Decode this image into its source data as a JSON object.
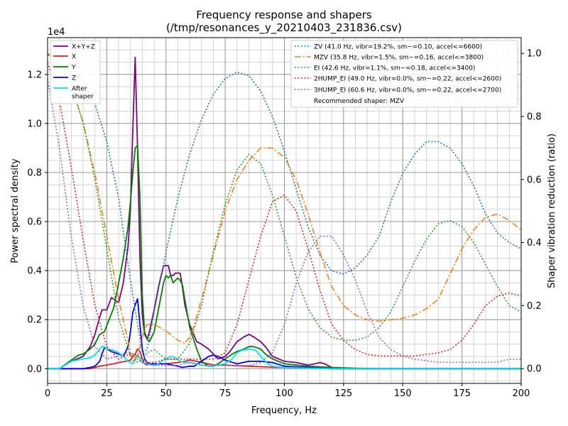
{
  "chart_data": {
    "type": "line",
    "title_line1": "Frequency response and shapers",
    "title_line2": "(/tmp/resonances_y_20210403_231836.csv)",
    "xlabel": "Frequency, Hz",
    "ylabel_left": "Power spectral density",
    "ylabel_right": "Shaper vibration reduction (ratio)",
    "y_offset_label": "1e4",
    "xlim": [
      0,
      200
    ],
    "ylim_left": [
      -600,
      13500
    ],
    "ylim_right": [
      -0.047,
      1.05
    ],
    "x_ticks": [
      0,
      25,
      50,
      75,
      100,
      125,
      150,
      175,
      200
    ],
    "x_tick_labels": [
      "0",
      "25",
      "50",
      "75",
      "100",
      "125",
      "150",
      "175",
      "200"
    ],
    "y_left_ticks": [
      0,
      2000,
      4000,
      6000,
      8000,
      10000,
      12000
    ],
    "y_left_tick_labels": [
      "0.0",
      "0.2",
      "0.4",
      "0.6",
      "0.8",
      "1.0",
      "1.2"
    ],
    "y_right_ticks": [
      0,
      0.2,
      0.4,
      0.6,
      0.8,
      1.0
    ],
    "y_right_tick_labels": [
      "0.0",
      "0.2",
      "0.4",
      "0.6",
      "0.8",
      "1.0"
    ],
    "grid": true,
    "psd_legend_position": "top-left",
    "shaper_legend_position": "top-right",
    "recommended_text": "Recommended shaper: MZV",
    "psd_series": [
      {
        "name": "X+Y+Z",
        "color": "#800080",
        "x": [
          0,
          5,
          10,
          15,
          18,
          20,
          22,
          23,
          25,
          27,
          30,
          32,
          34,
          35,
          36,
          37,
          38,
          39,
          40,
          41,
          42,
          43,
          45,
          47,
          49,
          50,
          51,
          52,
          53,
          54,
          55,
          56,
          57,
          58,
          60,
          63,
          65,
          68,
          72,
          75,
          77,
          80,
          83,
          85,
          87,
          90,
          92,
          95,
          100,
          105,
          110,
          113,
          115,
          117,
          120,
          125,
          130,
          135,
          140,
          150,
          175,
          200
        ],
        "y": [
          0,
          0,
          300,
          500,
          900,
          1400,
          2100,
          2400,
          2400,
          2900,
          2700,
          3500,
          5000,
          6500,
          9800,
          12700,
          9000,
          4500,
          2200,
          1400,
          1200,
          1500,
          2400,
          3400,
          4200,
          4200,
          4200,
          3800,
          3800,
          3900,
          3900,
          3900,
          3300,
          2600,
          1800,
          1100,
          1000,
          800,
          400,
          500,
          700,
          1100,
          1300,
          1400,
          1300,
          1100,
          900,
          500,
          300,
          250,
          150,
          200,
          250,
          200,
          50,
          0,
          0,
          0,
          0,
          0,
          0,
          0
        ]
      },
      {
        "name": "X",
        "color": "#d62020",
        "x": [
          0,
          10,
          15,
          18,
          20,
          22,
          25,
          28,
          30,
          33,
          35,
          37,
          38,
          39,
          40,
          41,
          42,
          43,
          45,
          50,
          55,
          58,
          60,
          63,
          65,
          68,
          70,
          72,
          75,
          80,
          85,
          90,
          95,
          100,
          110,
          120,
          200
        ],
        "y": [
          0,
          0,
          0,
          0,
          50,
          100,
          150,
          200,
          250,
          300,
          350,
          600,
          800,
          700,
          400,
          200,
          150,
          200,
          200,
          200,
          250,
          300,
          350,
          300,
          250,
          200,
          150,
          150,
          150,
          120,
          100,
          80,
          60,
          50,
          20,
          0,
          0
        ]
      },
      {
        "name": "Y",
        "color": "#008000",
        "x": [
          0,
          5,
          10,
          13,
          15,
          18,
          20,
          22,
          24,
          26,
          28,
          30,
          32,
          34,
          35,
          36,
          37,
          38,
          39,
          40,
          41,
          42,
          43,
          45,
          47,
          49,
          50,
          51,
          52,
          53,
          54,
          55,
          56,
          57,
          58,
          60,
          63,
          65,
          68,
          70,
          72,
          75,
          78,
          80,
          83,
          85,
          87,
          90,
          92,
          95,
          100,
          110,
          120,
          130,
          140,
          150,
          175,
          200
        ],
        "y": [
          0,
          0,
          350,
          550,
          600,
          800,
          1000,
          1400,
          1500,
          2000,
          2500,
          3500,
          4500,
          5800,
          6800,
          8000,
          9000,
          9100,
          7000,
          3000,
          1500,
          1200,
          1100,
          1500,
          2500,
          3500,
          3800,
          3700,
          3800,
          3500,
          3600,
          3700,
          3600,
          3400,
          2800,
          1700,
          800,
          300,
          100,
          100,
          200,
          400,
          600,
          700,
          800,
          900,
          900,
          800,
          600,
          400,
          200,
          100,
          50,
          20,
          0,
          0,
          0,
          0
        ]
      },
      {
        "name": "Z",
        "color": "#0000ff",
        "x": [
          0,
          15,
          18,
          20,
          22,
          23,
          24,
          25,
          27,
          30,
          32,
          34,
          35,
          36,
          37,
          38,
          39,
          40,
          41,
          42,
          43,
          45,
          47,
          50,
          55,
          57,
          60,
          62,
          65,
          68,
          70,
          72,
          75,
          80,
          85,
          90,
          95,
          100,
          110,
          120,
          200
        ],
        "y": [
          0,
          0,
          50,
          100,
          300,
          600,
          850,
          800,
          700,
          600,
          500,
          900,
          1500,
          2300,
          2600,
          2850,
          1800,
          800,
          400,
          250,
          200,
          200,
          200,
          200,
          100,
          50,
          100,
          100,
          300,
          500,
          550,
          500,
          350,
          200,
          300,
          300,
          250,
          100,
          50,
          0,
          0
        ]
      },
      {
        "name": "After\nshaper",
        "color": "#00e5ee",
        "x": [
          0,
          5,
          10,
          15,
          18,
          20,
          22,
          23,
          24,
          25,
          28,
          30,
          32,
          34,
          36,
          37,
          38,
          39,
          40,
          42,
          44,
          46,
          48,
          50,
          52,
          54,
          56,
          58,
          60,
          63,
          65,
          68,
          70,
          72,
          75,
          78,
          80,
          82,
          85,
          88,
          90,
          93,
          95,
          100,
          110,
          120,
          200
        ],
        "y": [
          0,
          0,
          300,
          400,
          450,
          550,
          800,
          900,
          900,
          800,
          750,
          650,
          500,
          300,
          200,
          350,
          600,
          400,
          250,
          200,
          150,
          150,
          300,
          400,
          500,
          450,
          300,
          250,
          250,
          200,
          150,
          100,
          100,
          150,
          200,
          400,
          650,
          750,
          800,
          750,
          500,
          200,
          100,
          50,
          20,
          0,
          0
        ]
      }
    ],
    "shaper_series": [
      {
        "name": "ZV (41.0 Hz, vibr=19.2%, sm~=0.10, accel<=6600)",
        "color": "#1f77b4",
        "style": "dotted",
        "x": [
          0,
          5,
          10,
          15,
          20,
          25,
          30,
          35,
          40,
          42,
          45,
          50,
          55,
          60,
          65,
          70,
          75,
          80,
          85,
          90,
          95,
          100,
          105,
          110,
          115,
          120,
          125,
          130,
          135,
          140,
          145,
          150,
          155,
          160,
          165,
          170,
          175,
          180,
          185,
          190,
          195,
          200
        ],
        "y": [
          0.995,
          0.985,
          0.96,
          0.915,
          0.84,
          0.72,
          0.54,
          0.28,
          0.05,
          0.06,
          0.18,
          0.37,
          0.54,
          0.68,
          0.79,
          0.87,
          0.92,
          0.94,
          0.93,
          0.88,
          0.8,
          0.69,
          0.57,
          0.45,
          0.36,
          0.31,
          0.3,
          0.32,
          0.36,
          0.42,
          0.53,
          0.62,
          0.68,
          0.72,
          0.72,
          0.7,
          0.65,
          0.58,
          0.49,
          0.43,
          0.4,
          0.38
        ]
      },
      {
        "name": "MZV (35.8 Hz, vibr=1.5%, sm~=0.16, accel<=3800)",
        "color": "#ff7f0e",
        "style": "dashdot",
        "x": [
          0,
          5,
          10,
          15,
          20,
          25,
          28,
          30,
          33,
          35,
          36,
          38,
          40,
          42,
          45,
          50,
          55,
          58,
          60,
          62,
          65,
          70,
          75,
          80,
          85,
          90,
          95,
          100,
          105,
          110,
          115,
          120,
          125,
          130,
          135,
          140,
          145,
          150,
          155,
          160,
          165,
          170,
          175,
          180,
          185,
          190,
          195,
          200
        ],
        "y": [
          1.0,
          0.97,
          0.9,
          0.78,
          0.62,
          0.42,
          0.3,
          0.22,
          0.12,
          0.05,
          0.02,
          0.04,
          0.1,
          0.14,
          0.14,
          0.12,
          0.09,
          0.08,
          0.1,
          0.14,
          0.22,
          0.36,
          0.5,
          0.6,
          0.66,
          0.7,
          0.7,
          0.67,
          0.6,
          0.49,
          0.37,
          0.26,
          0.2,
          0.17,
          0.155,
          0.15,
          0.155,
          0.16,
          0.17,
          0.19,
          0.22,
          0.3,
          0.38,
          0.44,
          0.48,
          0.49,
          0.47,
          0.44
        ]
      },
      {
        "name": "EI (42.6 Hz, vibr=1.1%, sm~=0.18, accel<=3400)",
        "color": "#2ca02c",
        "style": "dotted",
        "x": [
          0,
          5,
          10,
          15,
          20,
          25,
          30,
          35,
          38,
          40,
          42,
          45,
          50,
          55,
          60,
          65,
          70,
          75,
          80,
          85,
          90,
          95,
          100,
          105,
          110,
          115,
          120,
          125,
          130,
          135,
          140,
          145,
          150,
          155,
          160,
          165,
          170,
          175,
          180,
          185,
          190,
          195,
          200
        ],
        "y": [
          0.998,
          0.97,
          0.9,
          0.78,
          0.6,
          0.38,
          0.16,
          0.04,
          0.02,
          0.03,
          0.05,
          0.06,
          0.03,
          0.03,
          0.08,
          0.2,
          0.37,
          0.52,
          0.63,
          0.68,
          0.65,
          0.55,
          0.42,
          0.29,
          0.19,
          0.13,
          0.1,
          0.09,
          0.09,
          0.1,
          0.13,
          0.18,
          0.26,
          0.34,
          0.41,
          0.46,
          0.47,
          0.45,
          0.4,
          0.33,
          0.26,
          0.2,
          0.18
        ]
      },
      {
        "name": "2HUMP_EI (49.0 Hz, vibr=0.0%, sm~=0.22, accel<=2600)",
        "color": "#d62728",
        "style": "dotted",
        "x": [
          0,
          5,
          10,
          15,
          20,
          25,
          30,
          33,
          35,
          38,
          40,
          42,
          45,
          50,
          55,
          60,
          65,
          70,
          75,
          80,
          85,
          90,
          95,
          100,
          105,
          110,
          115,
          120,
          125,
          130,
          135,
          140,
          145,
          150,
          155,
          160,
          165,
          170,
          175,
          180,
          185,
          190,
          195,
          200
        ],
        "y": [
          0.97,
          0.85,
          0.64,
          0.41,
          0.2,
          0.07,
          0.03,
          0.04,
          0.05,
          0.04,
          0.03,
          0.02,
          0.02,
          0.03,
          0.03,
          0.03,
          0.03,
          0.03,
          0.05,
          0.14,
          0.28,
          0.42,
          0.53,
          0.55,
          0.5,
          0.38,
          0.25,
          0.14,
          0.09,
          0.06,
          0.045,
          0.04,
          0.04,
          0.04,
          0.04,
          0.045,
          0.05,
          0.06,
          0.09,
          0.14,
          0.2,
          0.23,
          0.24,
          0.23
        ]
      },
      {
        "name": "3HUMP_EI (60.6 Hz, vibr=0.0%, sm~=0.22, accel<=2700)",
        "color": "#9467bd",
        "style": "dotted",
        "x": [
          0,
          5,
          10,
          15,
          20,
          25,
          30,
          33,
          35,
          38,
          40,
          45,
          50,
          55,
          60,
          65,
          70,
          75,
          80,
          85,
          90,
          95,
          100,
          105,
          110,
          115,
          120,
          125,
          130,
          135,
          140,
          145,
          150,
          155,
          160,
          165,
          170,
          175,
          180,
          185,
          190,
          195,
          200
        ],
        "y": [
          0.92,
          0.7,
          0.42,
          0.2,
          0.07,
          0.03,
          0.04,
          0.05,
          0.045,
          0.03,
          0.02,
          0.01,
          0.01,
          0.01,
          0.02,
          0.01,
          0.01,
          0.01,
          0.01,
          0.01,
          0.02,
          0.05,
          0.14,
          0.27,
          0.37,
          0.42,
          0.42,
          0.36,
          0.28,
          0.18,
          0.1,
          0.06,
          0.04,
          0.03,
          0.025,
          0.02,
          0.02,
          0.02,
          0.02,
          0.02,
          0.02,
          0.03,
          0.03
        ]
      }
    ]
  }
}
